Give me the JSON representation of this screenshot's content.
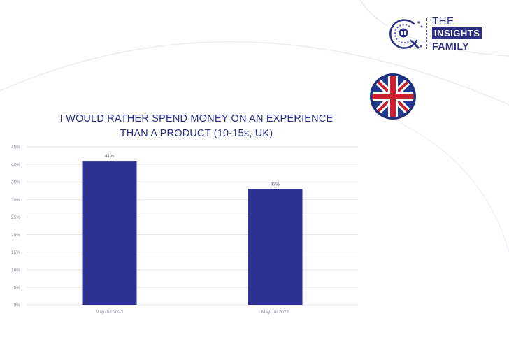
{
  "brand": {
    "line1": "THE",
    "line2": "INSIGHTS",
    "line3": "FAMILY"
  },
  "flag": {
    "icon": "uk-flag-icon",
    "colors": [
      "#1f3a93",
      "#ffffff",
      "#cc1f2f"
    ]
  },
  "colors": {
    "bar": "#2e3192",
    "title": "#2c2f85",
    "grid": "#e6e6ee",
    "tick": "#8a8a9a"
  },
  "chart_data": {
    "type": "bar",
    "title_lines": [
      "I WOULD RATHER SPEND MONEY ON AN EXPERIENCE",
      "THAN A PRODUCT (10-15s, UK)"
    ],
    "categories": [
      "May-Jul 2023",
      "May-Jul 2022"
    ],
    "values": [
      41,
      33
    ],
    "value_labels": [
      "41%",
      "33%"
    ],
    "yticks": [
      "0%",
      "5%",
      "10%",
      "15%",
      "20%",
      "25%",
      "30%",
      "35%",
      "40%",
      "45%"
    ],
    "ylim": [
      0,
      45
    ],
    "grid": true,
    "legend": "none"
  }
}
